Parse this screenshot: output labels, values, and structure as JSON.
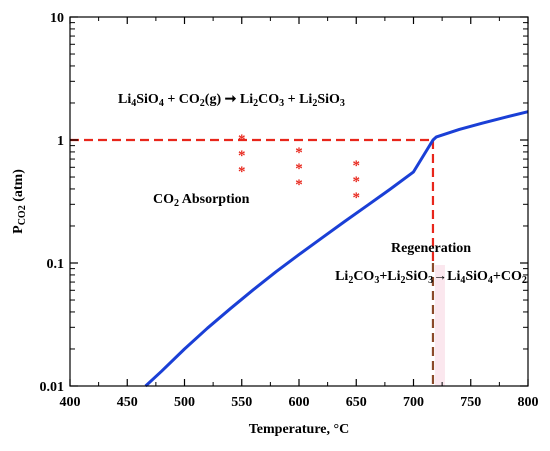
{
  "chart_data": {
    "type": "line",
    "x": [
      466,
      480,
      500,
      520,
      540,
      560,
      580,
      600,
      620,
      640,
      660,
      680,
      700,
      717,
      720,
      740,
      760,
      780,
      800
    ],
    "series": [
      {
        "values": [
          0.01,
          0.0132,
          0.02,
          0.0295,
          0.0425,
          0.0605,
          0.085,
          0.117,
          0.16,
          0.218,
          0.295,
          0.4,
          0.55,
          1.0,
          1.06,
          1.22,
          1.37,
          1.53,
          1.7
        ],
        "color": "#1a3fd6"
      }
    ],
    "xlabel": "Temperature, °C",
    "ylabel": "P",
    "ylabel_sub": "CO2",
    "ylabel_unit": " (atm)",
    "xlim": [
      400,
      800
    ],
    "ylim": [
      0.01,
      10
    ],
    "yscale": "log",
    "xticks": [
      400,
      450,
      500,
      550,
      600,
      650,
      700,
      750,
      800
    ],
    "yticks": [
      0.01,
      0.1,
      1,
      10
    ],
    "yticklabels": [
      "0.01",
      "0.1",
      "1",
      "10"
    ],
    "grid": false,
    "reference_lines": {
      "horizontal_y": 1,
      "horizontal_x_to": 717,
      "vertical_x": 717,
      "color": "#e8261b",
      "lower_segment_color": "#8b4a2a"
    },
    "stars": {
      "x": [
        550,
        600,
        650
      ],
      "y": [
        0.93,
        0.73,
        0.57
      ],
      "symbol": "*",
      "color": "#e8261b"
    },
    "annotations": {
      "reaction_top": {
        "parts": [
          [
            "Li",
            ""
          ],
          [
            "4",
            "sub"
          ],
          [
            "SiO",
            ""
          ],
          [
            "4",
            "sub"
          ],
          [
            " + CO",
            ""
          ],
          [
            "2",
            "sub"
          ],
          [
            "(g) ",
            ""
          ],
          [
            "➞",
            ""
          ],
          [
            " Li",
            ""
          ],
          [
            "2",
            "sub"
          ],
          [
            "CO",
            ""
          ],
          [
            "3",
            "sub"
          ],
          [
            " + Li",
            ""
          ],
          [
            "2",
            "sub"
          ],
          [
            "SiO",
            ""
          ],
          [
            "3",
            "sub"
          ]
        ]
      },
      "absorption": {
        "parts": [
          [
            "CO",
            ""
          ],
          [
            "2",
            "sub"
          ],
          [
            " Absorption",
            ""
          ]
        ]
      },
      "regeneration_title": "Regeneration",
      "regeneration_reaction": {
        "parts": [
          [
            "Li",
            ""
          ],
          [
            "2",
            "sub"
          ],
          [
            "CO",
            ""
          ],
          [
            "3",
            "sub"
          ],
          [
            "+Li",
            ""
          ],
          [
            "2",
            "sub"
          ],
          [
            "SiO",
            ""
          ],
          [
            "3",
            "sub"
          ],
          [
            "→",
            ""
          ],
          [
            "Li",
            ""
          ],
          [
            "4",
            "sub"
          ],
          [
            "SiO",
            ""
          ],
          [
            "4",
            "sub"
          ],
          [
            "+CO",
            ""
          ],
          [
            "2",
            "sub"
          ]
        ]
      }
    }
  }
}
